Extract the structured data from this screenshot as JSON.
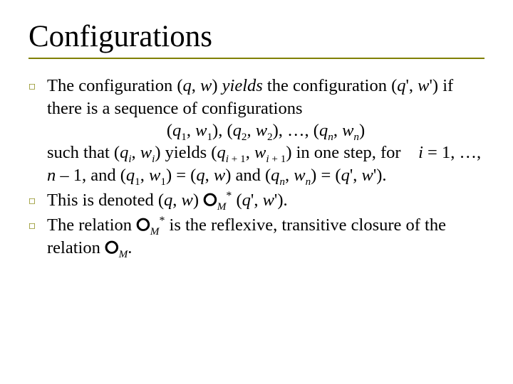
{
  "colors": {
    "background": "#ffffff",
    "text": "#000000",
    "accent": "#808000"
  },
  "typography": {
    "title_family": "Times New Roman",
    "title_size_pt": 32,
    "body_family": "Times New Roman",
    "body_size_pt": 18,
    "bullet_glyph": "◻",
    "bullet_color": "#808000"
  },
  "title": "Configurations",
  "bullets": [
    {
      "lines": [
        "The configuration (<i>q</i>, <i>w</i>) <i>yields</i> the configuration (<i>q</i>', <i>w</i>') if there is a sequence of configurations",
        "<center>(<i>q</i><sub>1</sub>, <i>w</i><sub>1</sub>), (<i>q</i><sub>2</sub>, <i>w</i><sub>2</sub>), …, (<i>q</i><sub>n</sub>, <i>w</i><sub>n</sub>)</center>",
        "such that (<i>q<sub>i</sub></i>, <i>w<sub>i</sub></i>) yields (<i>q</i><sub>i + 1</sub>, <i>w</i><sub>i + 1</sub>) in one step, for&nbsp;&nbsp;&nbsp;&nbsp;<i>i</i> = 1, …, <i>n</i> – 1, and (<i>q</i><sub>1</sub>, <i>w</i><sub>1</sub>) = (<i>q</i>, <i>w</i>) and (<i>q<sub>n</sub></i>, <i>w<sub>n</sub></i>) = (<i>q</i>', <i>w</i>')."
      ]
    },
    {
      "lines": [
        "This is denoted (<i>q</i>, <i>w</i>) <ring>⚬</ring><sub>M</sub><sup>*</sup> (<i>q</i>', <i>w</i>')."
      ]
    },
    {
      "lines": [
        "The relation <ring>⚬</ring><sub>M</sub><sup>*</sup> is the reflexive, transitive closure of the relation <ring>⚬</ring><sub>M</sub>."
      ]
    }
  ]
}
